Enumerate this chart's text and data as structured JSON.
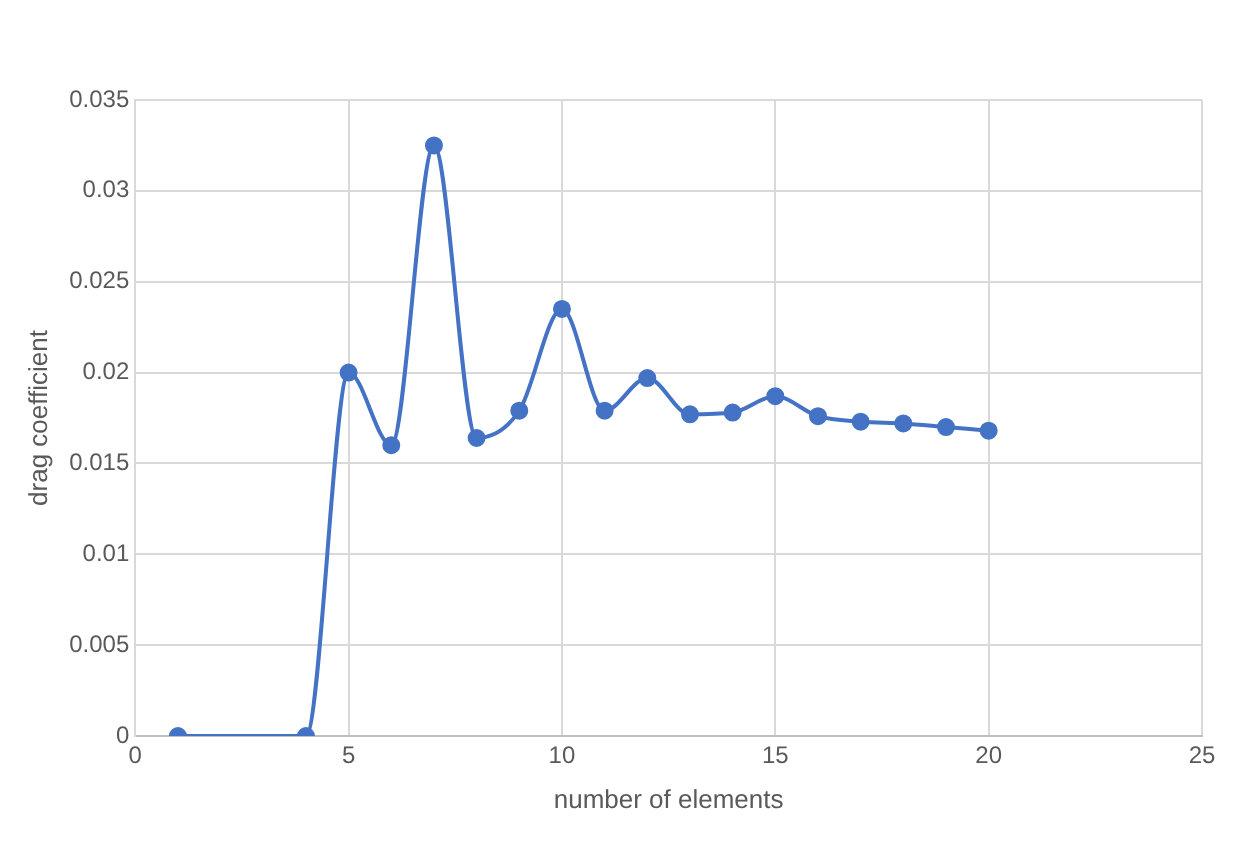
{
  "chart_data": {
    "type": "line",
    "xlabel": "number of elements",
    "ylabel": "drag coefficient",
    "x": [
      1,
      4,
      5,
      6,
      7,
      8,
      9,
      10,
      11,
      12,
      13,
      14,
      15,
      16,
      17,
      18,
      19,
      20
    ],
    "series": [
      {
        "color": "#4472c4",
        "values": [
          0,
          0,
          0.02,
          0.016,
          0.0325,
          0.0164,
          0.0179,
          0.0235,
          0.0179,
          0.0197,
          0.0177,
          0.0178,
          0.0187,
          0.0176,
          0.0173,
          0.0172,
          0.017,
          0.0168
        ]
      }
    ],
    "xlim": [
      0,
      25
    ],
    "xticks": [
      0,
      5,
      10,
      15,
      20,
      25
    ],
    "ylim": [
      0,
      0.035
    ],
    "yticks": [
      0,
      0.005,
      0.01,
      0.015,
      0.02,
      0.025,
      0.03,
      0.035
    ],
    "grid": true,
    "marker": "circle",
    "line_style": "solid"
  }
}
